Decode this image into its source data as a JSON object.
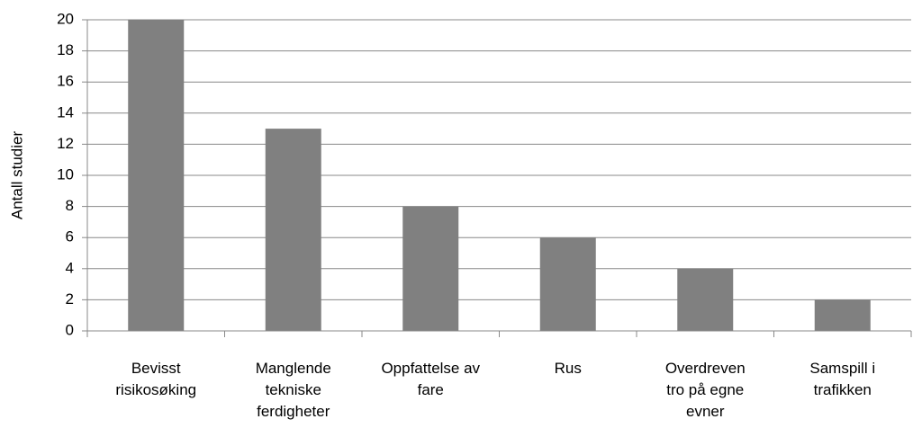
{
  "chart_data": {
    "type": "bar",
    "y_label": "Antall studier",
    "categories": [
      "Bevisst risikosøking",
      "Manglende tekniske ferdigheter",
      "Oppfattelse av fare",
      "Rus",
      "Overdreven tro på egne evner",
      "Samspill i trafikken"
    ],
    "values": [
      20,
      13,
      8,
      6,
      4,
      2
    ],
    "color": "#808080",
    "ylim": [
      0,
      20
    ],
    "yticks": [
      0,
      2,
      4,
      6,
      8,
      10,
      12,
      14,
      16,
      18,
      20
    ],
    "grid": true
  }
}
